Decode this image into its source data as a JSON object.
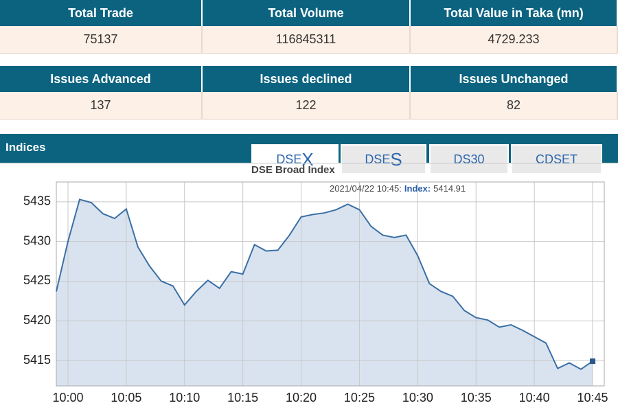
{
  "tables": [
    {
      "headers": [
        "Total Trade",
        "Total Volume",
        "Total Value in Taka (mn)"
      ],
      "values": [
        75137,
        116845311,
        4729.233
      ]
    },
    {
      "headers": [
        "Issues Advanced",
        "Issues declined",
        "Issues Unchanged"
      ],
      "values": [
        137,
        122,
        82
      ]
    }
  ],
  "section_title": "Indices",
  "tabs": [
    {
      "prefix": "DSE",
      "suffix": "X"
    },
    {
      "prefix": "DSE",
      "suffix": "S"
    },
    {
      "prefix": "DS30"
    },
    {
      "prefix": "CDSET"
    }
  ],
  "chart_data": {
    "type": "area",
    "title": "DSE Broad Index",
    "tooltip": {
      "time": "2021/04/22 10:45:",
      "label": "Index:",
      "value": 5414.91
    },
    "x": [
      599,
      600,
      601,
      602,
      603,
      604,
      605,
      606,
      607,
      608,
      609,
      610,
      611,
      612,
      613,
      614,
      615,
      616,
      617,
      618,
      619,
      620,
      621,
      622,
      623,
      624,
      625,
      626,
      627,
      628,
      629,
      630,
      631,
      632,
      633,
      634,
      635,
      636,
      637,
      638,
      639,
      640,
      641,
      642,
      643,
      644,
      645
    ],
    "series": [
      {
        "name": "Index",
        "color": "#3a6fa5",
        "fill": "#d9e3ef",
        "values": [
          5423.7,
          5430.0,
          5435.3,
          5434.9,
          5433.5,
          5432.9,
          5434.1,
          5429.3,
          5426.9,
          5425.0,
          5424.4,
          5422.0,
          5423.7,
          5425.1,
          5424.1,
          5426.2,
          5425.9,
          5429.6,
          5428.8,
          5428.9,
          5430.8,
          5433.1,
          5433.4,
          5433.6,
          5434.0,
          5434.7,
          5434.0,
          5431.9,
          5430.8,
          5430.5,
          5430.8,
          5428.2,
          5424.7,
          5423.7,
          5423.1,
          5421.3,
          5420.4,
          5420.1,
          5419.2,
          5419.5,
          5418.8,
          5418.0,
          5417.2,
          5414.0,
          5414.7,
          5413.9,
          5414.91
        ]
      }
    ],
    "xlim": [
      599,
      646
    ],
    "xticks": [
      {
        "value": 600,
        "label": "10:00"
      },
      {
        "value": 605,
        "label": "10:05"
      },
      {
        "value": 610,
        "label": "10:10"
      },
      {
        "value": 615,
        "label": "10:15"
      },
      {
        "value": 620,
        "label": "10:20"
      },
      {
        "value": 625,
        "label": "10:25"
      },
      {
        "value": 630,
        "label": "10:30"
      },
      {
        "value": 635,
        "label": "10:35"
      },
      {
        "value": 640,
        "label": "10:40"
      },
      {
        "value": 645,
        "label": "10:45"
      }
    ],
    "ylim": [
      5411.8,
      5437.5
    ],
    "yticks": [
      5415,
      5420,
      5425,
      5430,
      5435
    ],
    "grid": true
  }
}
